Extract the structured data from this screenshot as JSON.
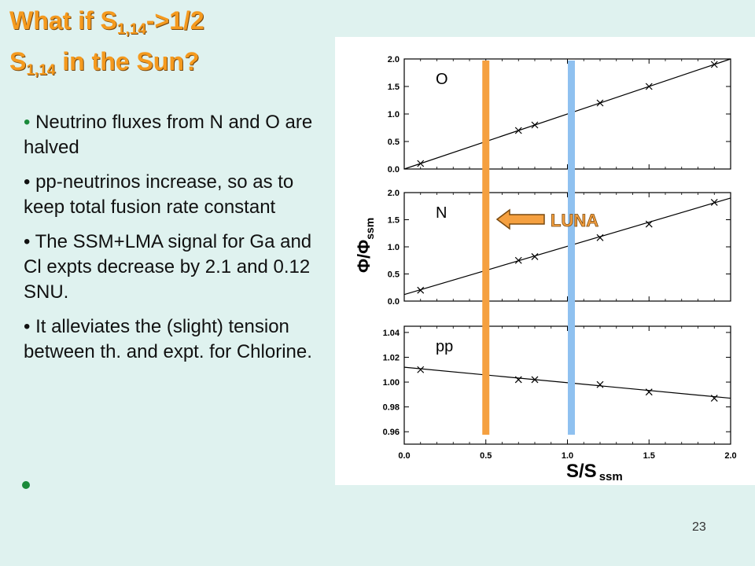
{
  "title": {
    "line1_pre": "What if S",
    "line1_sub": "1,14",
    "line1_post": "->1/2",
    "line2_pre": "S",
    "line2_sub": "1,14",
    "line2_post": " in the Sun?"
  },
  "bullets": [
    "Neutrino fluxes from N and  O are halved",
    "pp-neutrinos increase, so as to keep total fusion rate constant",
    "The SSM+LMA signal for Ga and Cl expts decrease by 2.1 and 0.12 SNU.",
    "It alleviates  the (slight) tension between th. and expt.  for Chlorine."
  ],
  "page_number": "23",
  "chart_data": {
    "type": "scatter",
    "xlabel_main": "S/S",
    "xlabel_sub": "ssm",
    "ylabel_main": "Φ/Φ",
    "ylabel_sub": "ssm",
    "xlim": [
      0.0,
      2.0
    ],
    "xticks": [
      "0.0",
      "0.5",
      "1.0",
      "1.5",
      "2.0"
    ],
    "annotation": "LUNA",
    "colors": {
      "orange_band": "#f5a040",
      "blue_band": "#8fc1f0",
      "luna_text": "#f5a040",
      "fit_line": "#000000"
    },
    "vertical_lines": [
      0.5,
      1.0
    ],
    "panels": [
      {
        "label": "O",
        "ylim": [
          0.0,
          2.0
        ],
        "yticks": [
          "0.0",
          "0.5",
          "1.0",
          "1.5",
          "2.0"
        ],
        "x": [
          0.1,
          0.7,
          0.8,
          1.2,
          1.5,
          1.9
        ],
        "y": [
          0.1,
          0.7,
          0.8,
          1.2,
          1.5,
          1.9
        ],
        "fit": [
          [
            0.0,
            0.0
          ],
          [
            2.0,
            2.0
          ]
        ]
      },
      {
        "label": "N",
        "ylim": [
          0.0,
          2.0
        ],
        "yticks": [
          "0.0",
          "0.5",
          "1.0",
          "1.5",
          "2.0"
        ],
        "x": [
          0.1,
          0.7,
          0.8,
          1.2,
          1.5,
          1.9
        ],
        "y": [
          0.2,
          0.75,
          0.82,
          1.17,
          1.42,
          1.82
        ],
        "fit": [
          [
            0.0,
            0.12
          ],
          [
            2.0,
            1.9
          ]
        ]
      },
      {
        "label": "pp",
        "ylim": [
          0.95,
          1.045
        ],
        "yticks": [
          "0.96",
          "0.98",
          "1.00",
          "1.02",
          "1.04"
        ],
        "x": [
          0.1,
          0.7,
          0.8,
          1.2,
          1.5,
          1.9
        ],
        "y": [
          1.01,
          1.002,
          1.002,
          0.998,
          0.992,
          0.987
        ],
        "fit": [
          [
            0.0,
            1.012
          ],
          [
            2.0,
            0.987
          ]
        ]
      }
    ]
  }
}
